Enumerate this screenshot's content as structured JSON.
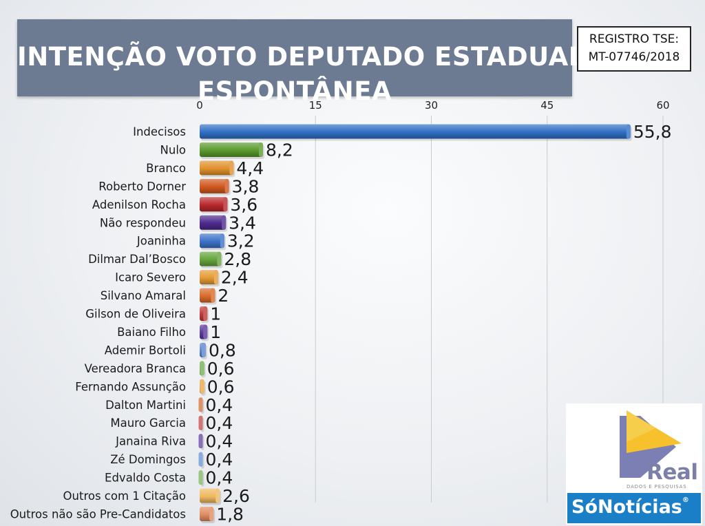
{
  "header": {
    "title_line_1": "INTENÇÃO VOTO DEPUTADO ESTADUAL",
    "title_line_2": "ESPONTÂNEA",
    "tse_line_1": "REGISTRO TSE:",
    "tse_line_2": "MT-07746/2018"
  },
  "logo": {
    "word": "Real",
    "subtitle": "DADOS E PESQUISAS",
    "brand": "SóNotícias",
    "brand_mark": "®",
    "colors": {
      "triangle": "#f6c12c",
      "shape": "#7b7fb3",
      "brand_bar": "#1a7fc6"
    }
  },
  "chart_data": {
    "type": "bar",
    "orientation": "horizontal",
    "title": "INTENÇÃO VOTO DEPUTADO ESTADUAL ESPONTÂNEA",
    "xlim": [
      0,
      60
    ],
    "xticks": [
      0,
      15,
      30,
      45,
      60
    ],
    "tick_labels": [
      "0",
      "15",
      "30",
      "45",
      "60"
    ],
    "grid": true,
    "categories": [
      "Indecisos",
      "Nulo",
      "Branco",
      "Roberto Dorner",
      "Adenilson Rocha",
      "Não respondeu",
      "Joaninha",
      "Dilmar Dal’Bosco",
      "Icaro Severo",
      "Silvano Amaral",
      "Gilson de Oliveira",
      "Baiano Filho",
      "Ademir Bortoli",
      "Vereadora Branca",
      "Fernando Assunção",
      "Dalton Martini",
      "Mauro Garcia",
      "Janaina Riva",
      "Zé Domingos",
      "Edvaldo Costa",
      "Outros com 1 Citação",
      "Outros não são Pre-Candidatos"
    ],
    "values": [
      55.8,
      8.2,
      4.4,
      3.8,
      3.6,
      3.4,
      3.2,
      2.8,
      2.4,
      2,
      1,
      1,
      0.8,
      0.6,
      0.6,
      0.4,
      0.4,
      0.4,
      0.4,
      0.4,
      2.6,
      1.8
    ],
    "value_labels": [
      "55,8",
      "8,2",
      "4,4",
      "3,8",
      "3,6",
      "3,4",
      "3,2",
      "2,8",
      "2,4",
      "2",
      "1",
      "1",
      "0,8",
      "0,6",
      "0,6",
      "0,4",
      "0,4",
      "0,4",
      "0,4",
      "0,4",
      "2,6",
      "1,8"
    ],
    "colors": [
      "#2f6fc4",
      "#5a9a2c",
      "#e0902a",
      "#d0581e",
      "#b8282a",
      "#4b2a8c",
      "#3d72c8",
      "#64a43a",
      "#e59a34",
      "#d96a2a",
      "#bf3a38",
      "#5b3a9c",
      "#5a86d0",
      "#74b050",
      "#e8a848",
      "#d47840",
      "#c85050",
      "#6b4aa8",
      "#6a96d8",
      "#80b860",
      "#f0b860",
      "#e08c60"
    ]
  }
}
